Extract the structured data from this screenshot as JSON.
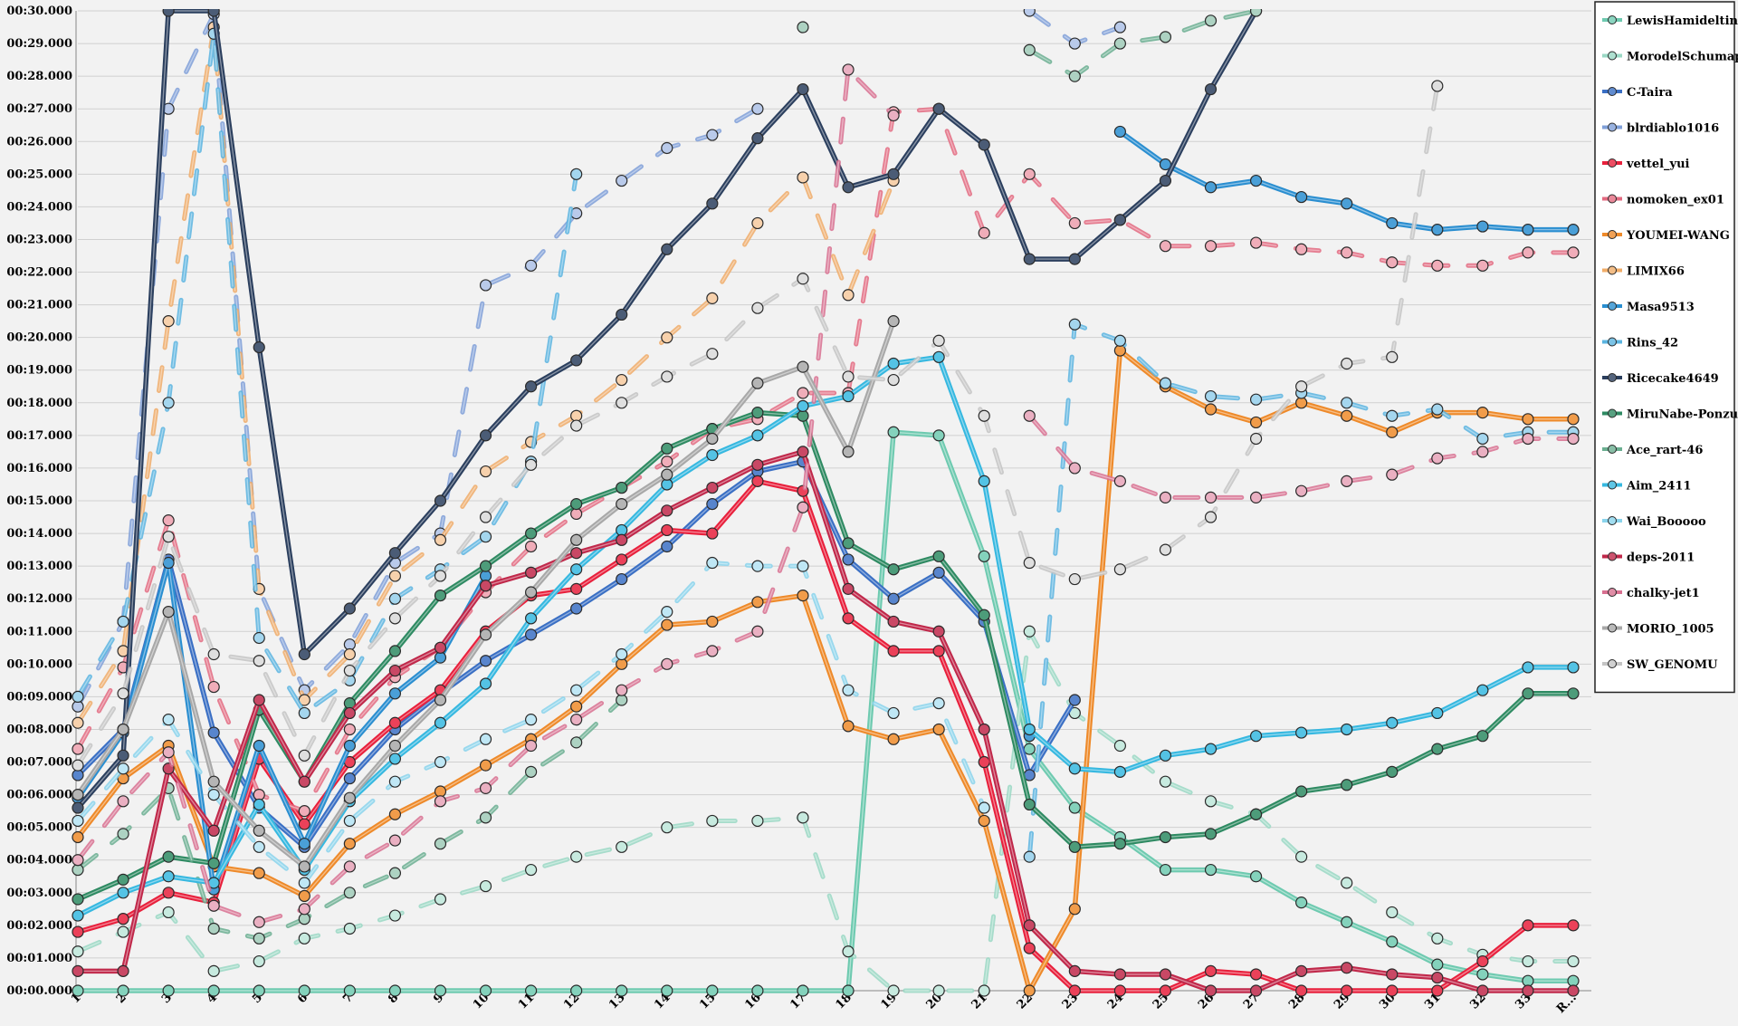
{
  "chart_data": {
    "type": "line",
    "x": [
      "1",
      "2",
      "3",
      "4",
      "5",
      "6",
      "7",
      "8",
      "9",
      "10",
      "11",
      "12",
      "13",
      "14",
      "15",
      "16",
      "17",
      "18",
      "19",
      "20",
      "21",
      "22",
      "23",
      "24",
      "25",
      "26",
      "27",
      "28",
      "29",
      "30",
      "31",
      "32",
      "33",
      "R..."
    ],
    "ylim": [
      0,
      30
    ],
    "y_unit": "seconds",
    "y_ticks": [
      "00:00.000",
      "00:01.000",
      "00:02.000",
      "00:03.000",
      "00:04.000",
      "00:05.000",
      "00:06.000",
      "00:07.000",
      "00:08.000",
      "00:09.000",
      "00:10.000",
      "00:11.000",
      "00:12.000",
      "00:13.000",
      "00:14.000",
      "00:15.000",
      "00:16.000",
      "00:17.000",
      "00:18.000",
      "00:19.000",
      "00:20.000",
      "00:21.000",
      "00:22.000",
      "00:23.000",
      "00:24.000",
      "00:25.000",
      "00:26.000",
      "00:27.000",
      "00:28.000",
      "00:29.000",
      "00:30.000"
    ],
    "grid": true,
    "legend_position": "right",
    "series": [
      {
        "name": "LewisHamideltin",
        "color": "#6ecab0",
        "dashed": false,
        "values": [
          0,
          0,
          0,
          0,
          0,
          0,
          0,
          0,
          0,
          0,
          0,
          0,
          0,
          0,
          0,
          0,
          0,
          0,
          17.1,
          17,
          13.3,
          7.4,
          5.6,
          4.7,
          3.7,
          3.7,
          3.5,
          2.7,
          2.1,
          1.5,
          0.8,
          0.5,
          0.3,
          0.3
        ]
      },
      {
        "name": "MorodelSchumappa",
        "color": "#9ad8c4",
        "dashed": true,
        "values": [
          1.2,
          1.8,
          2.4,
          0.6,
          0.9,
          1.6,
          1.9,
          2.3,
          2.8,
          3.2,
          3.7,
          4.1,
          4.4,
          5,
          5.2,
          5.2,
          5.3,
          1.2,
          0,
          0,
          0,
          11,
          8.5,
          7.5,
          6.4,
          5.8,
          5.4,
          4.1,
          3.3,
          2.4,
          1.6,
          1.1,
          0.9,
          0.9
        ]
      },
      {
        "name": "C-Taira",
        "color": "#3a6fc4",
        "dashed": false,
        "values": [
          6.6,
          8,
          13.2,
          7.9,
          5.6,
          4.4,
          6.5,
          8,
          9.1,
          10.1,
          10.9,
          11.7,
          12.6,
          13.6,
          14.9,
          15.9,
          16.2,
          13.2,
          12,
          12.8,
          11.3,
          6.6,
          8.9,
          null,
          null,
          null,
          null,
          null,
          null,
          null,
          null,
          null,
          null,
          null
        ]
      },
      {
        "name": "blrdiablo1016",
        "color": "#7f9fd8",
        "dashed": true,
        "values": [
          8.7,
          11.3,
          27,
          29.9,
          12.3,
          9.2,
          10.6,
          13.1,
          14,
          21.6,
          22.2,
          23.8,
          24.8,
          25.8,
          26.2,
          27,
          null,
          null,
          null,
          null,
          null,
          30,
          29,
          29.5,
          null,
          null,
          null,
          null,
          null,
          null,
          null,
          null,
          null,
          null
        ]
      },
      {
        "name": "vettel_yui",
        "color": "#e8203c",
        "dashed": false,
        "values": [
          1.8,
          2.2,
          3,
          2.7,
          7.1,
          5.1,
          7,
          8.2,
          9.2,
          11,
          12.1,
          12.3,
          13.2,
          14.1,
          14,
          15.6,
          15.3,
          11.4,
          10.4,
          10.4,
          7,
          1.3,
          0,
          0,
          0,
          0.6,
          0.5,
          0,
          0,
          0,
          0,
          0.9,
          2,
          2
        ]
      },
      {
        "name": "nomoken_ex01",
        "color": "#e36a80",
        "dashed": true,
        "values": [
          7.4,
          9.9,
          14.4,
          9.3,
          6,
          5.5,
          8,
          9.6,
          10.5,
          12.2,
          13.6,
          14.6,
          15.4,
          16.2,
          17.2,
          17.5,
          18.3,
          18.3,
          26.9,
          27,
          23.2,
          25,
          23.5,
          23.6,
          22.8,
          22.8,
          22.9,
          22.7,
          22.6,
          22.3,
          22.2,
          22.2,
          22.6,
          22.6
        ]
      },
      {
        "name": "YOUMEI-WANG",
        "color": "#ee8a2a",
        "dashed": false,
        "values": [
          4.7,
          6.5,
          7.5,
          3.8,
          3.6,
          2.9,
          4.5,
          5.4,
          6.1,
          6.9,
          7.7,
          8.7,
          10,
          11.2,
          11.3,
          11.9,
          12.1,
          8.1,
          7.7,
          8,
          5.2,
          0,
          2.5,
          19.6,
          18.5,
          17.8,
          17.4,
          18,
          17.6,
          17.1,
          17.7,
          17.7,
          17.5,
          17.5
        ]
      },
      {
        "name": "LIMIX66",
        "color": "#f0ac68",
        "dashed": true,
        "values": [
          8.2,
          10.4,
          20.5,
          29.5,
          12.3,
          8.9,
          10.3,
          12.7,
          13.8,
          15.9,
          16.8,
          17.6,
          18.7,
          20,
          21.2,
          23.5,
          24.9,
          21.3,
          24.8,
          null,
          null,
          null,
          null,
          null,
          null,
          null,
          null,
          null,
          null,
          null,
          null,
          null,
          null,
          null
        ]
      },
      {
        "name": "Masa9513",
        "color": "#2a8ed0",
        "dashed": false,
        "values": [
          5.9,
          7.9,
          13.1,
          3.1,
          7.5,
          4.5,
          7.5,
          9.1,
          10.2,
          12.7,
          null,
          null,
          null,
          null,
          null,
          null,
          null,
          null,
          null,
          null,
          null,
          7.8,
          null,
          26.3,
          25.3,
          24.6,
          24.8,
          24.3,
          24.1,
          23.5,
          23.3,
          23.4,
          23.3,
          23.3
        ]
      },
      {
        "name": "Rins_42",
        "color": "#5ab4e0",
        "dashed": true,
        "values": [
          9,
          11.3,
          18,
          29.3,
          10.8,
          8.5,
          9.5,
          12,
          12.9,
          13.9,
          16.2,
          25,
          null,
          null,
          null,
          null,
          null,
          null,
          null,
          null,
          null,
          4.1,
          20.4,
          19.9,
          18.6,
          18.2,
          18.1,
          18.3,
          18,
          17.6,
          17.8,
          16.9,
          17.1,
          17.1
        ]
      },
      {
        "name": "Ricecake4649",
        "color": "#2b3f5e",
        "dashed": false,
        "values": [
          5.6,
          7.2,
          30,
          30,
          19.7,
          10.3,
          11.7,
          13.4,
          15,
          17,
          18.5,
          19.3,
          20.7,
          22.7,
          24.1,
          26.1,
          27.6,
          24.6,
          25,
          27,
          25.9,
          22.4,
          22.4,
          23.6,
          24.8,
          27.6,
          30,
          null,
          null,
          null,
          null,
          null,
          null,
          null
        ]
      },
      {
        "name": "MiruNabe-Ponzu",
        "color": "#2e8a62",
        "dashed": false,
        "values": [
          2.8,
          3.4,
          4.1,
          3.9,
          8.6,
          6.4,
          8.8,
          10.4,
          12.1,
          13,
          14,
          14.9,
          15.4,
          16.6,
          17.2,
          17.7,
          17.6,
          13.7,
          12.9,
          13.3,
          11.5,
          5.7,
          4.4,
          4.5,
          4.7,
          4.8,
          5.4,
          6.1,
          6.3,
          6.7,
          7.4,
          7.8,
          9.1,
          9.1
        ]
      },
      {
        "name": "Ace_rart-46",
        "color": "#6aae90",
        "dashed": true,
        "values": [
          3.7,
          4.8,
          6.2,
          1.9,
          1.6,
          2.2,
          3,
          3.6,
          4.5,
          5.3,
          6.7,
          7.6,
          8.9,
          null,
          null,
          null,
          29.5,
          null,
          null,
          null,
          null,
          28.8,
          28,
          29,
          29.2,
          29.7,
          30,
          null,
          null,
          null,
          null,
          null,
          null,
          null
        ]
      },
      {
        "name": "Aim_2411",
        "color": "#36b8e0",
        "dashed": false,
        "values": [
          2.3,
          3,
          3.5,
          3.3,
          5.7,
          3.7,
          5.8,
          7.1,
          8.2,
          9.4,
          11.4,
          12.9,
          14.1,
          15.5,
          16.4,
          17,
          17.9,
          18.2,
          19.2,
          19.4,
          15.6,
          8,
          6.8,
          6.7,
          7.2,
          7.4,
          7.8,
          7.9,
          8,
          8.2,
          8.5,
          9.2,
          9.9,
          9.9
        ]
      },
      {
        "name": "Wai_Booooo",
        "color": "#8ad4ec",
        "dashed": true,
        "values": [
          5.2,
          6.8,
          8.3,
          6,
          4.4,
          3.3,
          5.2,
          6.4,
          7,
          7.7,
          8.3,
          9.2,
          10.3,
          11.6,
          13.1,
          13,
          13,
          9.2,
          8.5,
          8.8,
          5.6,
          null,
          null,
          null,
          null,
          null,
          null,
          null,
          null,
          null,
          null,
          null,
          null,
          null
        ]
      },
      {
        "name": "deps-2011",
        "color": "#c0284a",
        "dashed": false,
        "values": [
          0.6,
          0.6,
          6.8,
          4.9,
          8.9,
          6.4,
          8.5,
          9.8,
          10.5,
          12.4,
          12.8,
          13.4,
          13.8,
          14.7,
          15.4,
          16.1,
          16.5,
          12.3,
          11.3,
          11,
          8,
          2,
          0.6,
          0.5,
          0.5,
          0,
          0,
          0.6,
          0.7,
          0.5,
          0.4,
          0,
          0,
          0
        ]
      },
      {
        "name": "chalky-jet1",
        "color": "#d87090",
        "dashed": true,
        "values": [
          4,
          5.8,
          7.3,
          2.6,
          2.1,
          2.5,
          3.8,
          4.6,
          5.8,
          6.2,
          7.5,
          8.3,
          9.2,
          10,
          10.4,
          11,
          14.8,
          28.2,
          26.8,
          null,
          null,
          17.6,
          16,
          15.6,
          15.1,
          15.1,
          15.1,
          15.3,
          15.6,
          15.8,
          16.3,
          16.5,
          16.9,
          16.9
        ]
      },
      {
        "name": "MORIO_1005",
        "color": "#a8a8a8",
        "dashed": false,
        "values": [
          6,
          8,
          11.6,
          6.4,
          4.9,
          3.8,
          5.9,
          7.5,
          8.9,
          10.9,
          12.2,
          13.8,
          14.9,
          15.8,
          16.9,
          18.6,
          19.1,
          16.5,
          20.5,
          null,
          null,
          null,
          null,
          null,
          null,
          null,
          null,
          null,
          null,
          null,
          null,
          null,
          null,
          null
        ]
      },
      {
        "name": "SW_GENOMU",
        "color": "#c4c4c4",
        "dashed": true,
        "values": [
          6.9,
          9.1,
          13.9,
          10.3,
          10.1,
          7.2,
          9.8,
          11.4,
          12.7,
          14.5,
          16.1,
          17.3,
          18,
          18.8,
          19.5,
          20.9,
          21.8,
          18.8,
          18.7,
          19.9,
          17.6,
          13.1,
          12.6,
          12.9,
          13.5,
          14.5,
          16.9,
          18.5,
          19.2,
          19.4,
          27.7,
          null,
          null,
          null
        ]
      }
    ]
  }
}
